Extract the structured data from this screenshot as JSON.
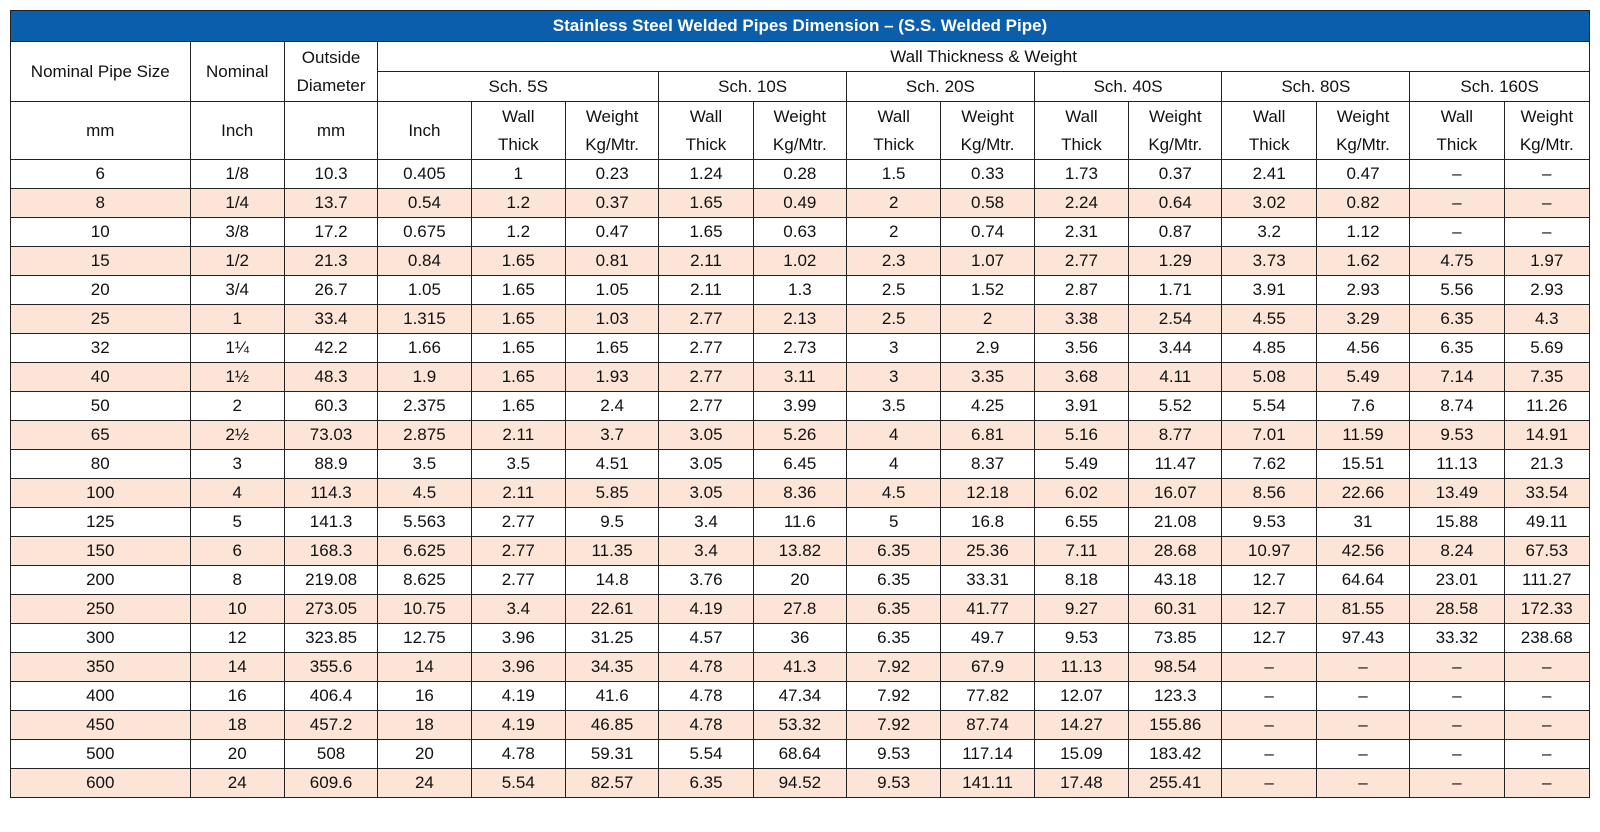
{
  "title": "Stainless Steel Welded Pipes Dimension – (S.S. Welded Pipe)",
  "header": {
    "nominal_pipe_size": "Nominal Pipe Size",
    "nominal": "Nominal",
    "outside_diameter_1": "Outside",
    "outside_diameter_2": "Diameter",
    "wall_thickness_weight": "Wall Thickness & Weight",
    "schedules": [
      "Sch. 5S",
      "Sch. 10S",
      "Sch. 20S",
      "Sch. 40S",
      "Sch. 80S",
      "Sch. 160S"
    ],
    "unit_mm": "mm",
    "unit_inch": "Inch",
    "unit_od_mm": "mm",
    "unit_od_inch": "Inch",
    "wall_1": "Wall",
    "wall_2": "Thick",
    "weight_1": "Weight",
    "weight_2": "Kg/Mtr."
  },
  "rows": [
    [
      "6",
      "1/8",
      "10.3",
      "0.405",
      "1",
      "0.23",
      "1.24",
      "0.28",
      "1.5",
      "0.33",
      "1.73",
      "0.37",
      "2.41",
      "0.47",
      "–",
      "–"
    ],
    [
      "8",
      "1/4",
      "13.7",
      "0.54",
      "1.2",
      "0.37",
      "1.65",
      "0.49",
      "2",
      "0.58",
      "2.24",
      "0.64",
      "3.02",
      "0.82",
      "–",
      "–"
    ],
    [
      "10",
      "3/8",
      "17.2",
      "0.675",
      "1.2",
      "0.47",
      "1.65",
      "0.63",
      "2",
      "0.74",
      "2.31",
      "0.87",
      "3.2",
      "1.12",
      "–",
      "–"
    ],
    [
      "15",
      "1/2",
      "21.3",
      "0.84",
      "1.65",
      "0.81",
      "2.11",
      "1.02",
      "2.3",
      "1.07",
      "2.77",
      "1.29",
      "3.73",
      "1.62",
      "4.75",
      "1.97"
    ],
    [
      "20",
      "3/4",
      "26.7",
      "1.05",
      "1.65",
      "1.05",
      "2.11",
      "1.3",
      "2.5",
      "1.52",
      "2.87",
      "1.71",
      "3.91",
      "2.93",
      "5.56",
      "2.93"
    ],
    [
      "25",
      "1",
      "33.4",
      "1.315",
      "1.65",
      "1.03",
      "2.77",
      "2.13",
      "2.5",
      "2",
      "3.38",
      "2.54",
      "4.55",
      "3.29",
      "6.35",
      "4.3"
    ],
    [
      "32",
      "1¼",
      "42.2",
      "1.66",
      "1.65",
      "1.65",
      "2.77",
      "2.73",
      "3",
      "2.9",
      "3.56",
      "3.44",
      "4.85",
      "4.56",
      "6.35",
      "5.69"
    ],
    [
      "40",
      "1½",
      "48.3",
      "1.9",
      "1.65",
      "1.93",
      "2.77",
      "3.11",
      "3",
      "3.35",
      "3.68",
      "4.11",
      "5.08",
      "5.49",
      "7.14",
      "7.35"
    ],
    [
      "50",
      "2",
      "60.3",
      "2.375",
      "1.65",
      "2.4",
      "2.77",
      "3.99",
      "3.5",
      "4.25",
      "3.91",
      "5.52",
      "5.54",
      "7.6",
      "8.74",
      "11.26"
    ],
    [
      "65",
      "2½",
      "73.03",
      "2.875",
      "2.11",
      "3.7",
      "3.05",
      "5.26",
      "4",
      "6.81",
      "5.16",
      "8.77",
      "7.01",
      "11.59",
      "9.53",
      "14.91"
    ],
    [
      "80",
      "3",
      "88.9",
      "3.5",
      "3.5",
      "4.51",
      "3.05",
      "6.45",
      "4",
      "8.37",
      "5.49",
      "11.47",
      "7.62",
      "15.51",
      "11.13",
      "21.3"
    ],
    [
      "100",
      "4",
      "114.3",
      "4.5",
      "2.11",
      "5.85",
      "3.05",
      "8.36",
      "4.5",
      "12.18",
      "6.02",
      "16.07",
      "8.56",
      "22.66",
      "13.49",
      "33.54"
    ],
    [
      "125",
      "5",
      "141.3",
      "5.563",
      "2.77",
      "9.5",
      "3.4",
      "11.6",
      "5",
      "16.8",
      "6.55",
      "21.08",
      "9.53",
      "31",
      "15.88",
      "49.11"
    ],
    [
      "150",
      "6",
      "168.3",
      "6.625",
      "2.77",
      "11.35",
      "3.4",
      "13.82",
      "6.35",
      "25.36",
      "7.11",
      "28.68",
      "10.97",
      "42.56",
      "8.24",
      "67.53"
    ],
    [
      "200",
      "8",
      "219.08",
      "8.625",
      "2.77",
      "14.8",
      "3.76",
      "20",
      "6.35",
      "33.31",
      "8.18",
      "43.18",
      "12.7",
      "64.64",
      "23.01",
      "111.27"
    ],
    [
      "250",
      "10",
      "273.05",
      "10.75",
      "3.4",
      "22.61",
      "4.19",
      "27.8",
      "6.35",
      "41.77",
      "9.27",
      "60.31",
      "12.7",
      "81.55",
      "28.58",
      "172.33"
    ],
    [
      "300",
      "12",
      "323.85",
      "12.75",
      "3.96",
      "31.25",
      "4.57",
      "36",
      "6.35",
      "49.7",
      "9.53",
      "73.85",
      "12.7",
      "97.43",
      "33.32",
      "238.68"
    ],
    [
      "350",
      "14",
      "355.6",
      "14",
      "3.96",
      "34.35",
      "4.78",
      "41.3",
      "7.92",
      "67.9",
      "11.13",
      "98.54",
      "–",
      "–",
      "–",
      "–"
    ],
    [
      "400",
      "16",
      "406.4",
      "16",
      "4.19",
      "41.6",
      "4.78",
      "47.34",
      "7.92",
      "77.82",
      "12.07",
      "123.3",
      "–",
      "–",
      "–",
      "–"
    ],
    [
      "450",
      "18",
      "457.2",
      "18",
      "4.19",
      "46.85",
      "4.78",
      "53.32",
      "7.92",
      "87.74",
      "14.27",
      "155.86",
      "–",
      "–",
      "–",
      "–"
    ],
    [
      "500",
      "20",
      "508",
      "20",
      "4.78",
      "59.31",
      "5.54",
      "68.64",
      "9.53",
      "117.14",
      "15.09",
      "183.42",
      "–",
      "–",
      "–",
      "–"
    ],
    [
      "600",
      "24",
      "609.6",
      "24",
      "5.54",
      "82.57",
      "6.35",
      "94.52",
      "9.53",
      "141.11",
      "17.48",
      "255.41",
      "–",
      "–",
      "–",
      "–"
    ]
  ],
  "colors": {
    "title_bg": "#0b5eab",
    "title_text": "#ffffff",
    "alt_row_bg": "#fce4d6",
    "border": "#222222"
  }
}
